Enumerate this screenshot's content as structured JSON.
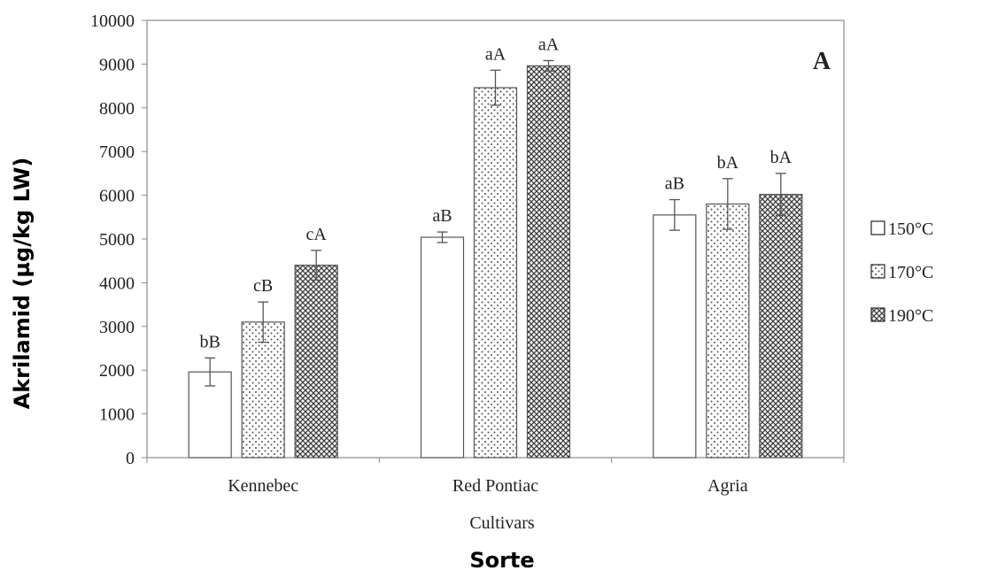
{
  "chart_data": {
    "type": "bar",
    "panel_label": "A",
    "xlabel": "Cultivars",
    "ylabel": "",
    "overlay_xlabel": "Sorte",
    "overlay_ylabel": "Akrilamid (µg/kg LW)",
    "categories": [
      "Kennebec",
      "Red Pontiac",
      "Agria"
    ],
    "ylim": [
      0,
      10000
    ],
    "yticks": [
      "0",
      "1000",
      "2000",
      "3000",
      "4000",
      "5000",
      "6000",
      "7000",
      "8000",
      "9000",
      "10000"
    ],
    "grid": false,
    "legend_position": "right",
    "series": [
      {
        "name": "150°C",
        "pattern": "solid-white",
        "values": [
          1960,
          5040,
          5550
        ],
        "errors": [
          320,
          120,
          350
        ],
        "labels": [
          "bB",
          "aB",
          "aB"
        ]
      },
      {
        "name": "170°C",
        "pattern": "dots",
        "values": [
          3100,
          8460,
          5800
        ],
        "errors": [
          460,
          400,
          580
        ],
        "labels": [
          "cB",
          "aA",
          "bA"
        ]
      },
      {
        "name": "190°C",
        "pattern": "crosshatch",
        "values": [
          4400,
          8960,
          6020
        ],
        "errors": [
          340,
          120,
          480
        ],
        "labels": [
          "cA",
          "aA",
          "bA"
        ]
      }
    ]
  }
}
